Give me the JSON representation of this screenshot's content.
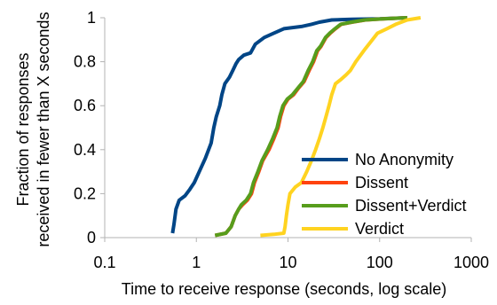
{
  "chart_data": {
    "type": "line",
    "title": "",
    "xlabel": "Time to receive response (seconds, log scale)",
    "ylabel_lines": [
      "Fraction of responses",
      "received in fewer than X seconds"
    ],
    "x_scale": "log",
    "xlim": [
      0.1,
      1000
    ],
    "ylim": [
      0,
      1
    ],
    "x_ticks": [
      0.1,
      1,
      10,
      100,
      1000
    ],
    "x_tick_labels": [
      "0.1",
      "1",
      "10",
      "100",
      "1000"
    ],
    "y_ticks": [
      0,
      0.2,
      0.4,
      0.6,
      0.8,
      1
    ],
    "y_tick_labels": [
      "0",
      "0.2",
      "0.4",
      "0.6",
      "0.8",
      "1"
    ],
    "grid": false,
    "legend_position": "right",
    "series": [
      {
        "name": "No Anonymity",
        "color": "#004586",
        "points": [
          [
            0.55,
            0.02
          ],
          [
            0.57,
            0.06
          ],
          [
            0.6,
            0.13
          ],
          [
            0.65,
            0.17
          ],
          [
            0.75,
            0.19
          ],
          [
            0.85,
            0.22
          ],
          [
            0.95,
            0.25
          ],
          [
            1.05,
            0.29
          ],
          [
            1.25,
            0.36
          ],
          [
            1.45,
            0.43
          ],
          [
            1.55,
            0.5
          ],
          [
            1.65,
            0.55
          ],
          [
            1.8,
            0.6
          ],
          [
            1.9,
            0.65
          ],
          [
            2.05,
            0.7
          ],
          [
            2.3,
            0.73
          ],
          [
            2.5,
            0.76
          ],
          [
            2.7,
            0.79
          ],
          [
            2.9,
            0.81
          ],
          [
            3.3,
            0.83
          ],
          [
            3.9,
            0.84
          ],
          [
            4.4,
            0.88
          ],
          [
            5.5,
            0.91
          ],
          [
            7.0,
            0.93
          ],
          [
            9.0,
            0.95
          ],
          [
            14,
            0.96
          ],
          [
            18,
            0.97
          ],
          [
            22,
            0.98
          ],
          [
            30,
            0.99
          ],
          [
            50,
            0.993
          ],
          [
            100,
            0.995
          ],
          [
            150,
            0.998
          ],
          [
            200,
            1.0
          ]
        ]
      },
      {
        "name": "Dissent",
        "color": "#ff420e",
        "points": [
          [
            1.6,
            0.01
          ],
          [
            2.1,
            0.02
          ],
          [
            2.4,
            0.05
          ],
          [
            2.65,
            0.1
          ],
          [
            2.9,
            0.13
          ],
          [
            3.2,
            0.15
          ],
          [
            3.6,
            0.17
          ],
          [
            4.0,
            0.2
          ],
          [
            4.3,
            0.25
          ],
          [
            4.8,
            0.3
          ],
          [
            5.3,
            0.35
          ],
          [
            6.2,
            0.4
          ],
          [
            7.0,
            0.45
          ],
          [
            7.8,
            0.5
          ],
          [
            8.3,
            0.55
          ],
          [
            9.0,
            0.6
          ],
          [
            10.0,
            0.63
          ],
          [
            11.5,
            0.65
          ],
          [
            13.0,
            0.68
          ],
          [
            15.0,
            0.71
          ],
          [
            17.0,
            0.76
          ],
          [
            19.0,
            0.8
          ],
          [
            21.0,
            0.85
          ],
          [
            23.0,
            0.87
          ],
          [
            26.0,
            0.91
          ],
          [
            29.0,
            0.93
          ],
          [
            33.0,
            0.95
          ],
          [
            38.0,
            0.97
          ],
          [
            50.0,
            0.98
          ],
          [
            70.0,
            0.99
          ],
          [
            110.0,
            0.995
          ],
          [
            200.0,
            1.0
          ]
        ]
      },
      {
        "name": "Dissent+Verdict",
        "color": "#579d1c",
        "points": [
          [
            1.6,
            0.01
          ],
          [
            2.1,
            0.02
          ],
          [
            2.4,
            0.05
          ],
          [
            2.65,
            0.1
          ],
          [
            2.9,
            0.13
          ],
          [
            3.1,
            0.15
          ],
          [
            3.5,
            0.17
          ],
          [
            3.9,
            0.2
          ],
          [
            4.2,
            0.25
          ],
          [
            4.7,
            0.3
          ],
          [
            5.2,
            0.35
          ],
          [
            6.0,
            0.4
          ],
          [
            6.8,
            0.45
          ],
          [
            7.6,
            0.5
          ],
          [
            8.1,
            0.55
          ],
          [
            8.8,
            0.6
          ],
          [
            9.8,
            0.63
          ],
          [
            11.2,
            0.65
          ],
          [
            12.8,
            0.68
          ],
          [
            14.7,
            0.71
          ],
          [
            16.6,
            0.76
          ],
          [
            18.6,
            0.8
          ],
          [
            20.6,
            0.85
          ],
          [
            22.6,
            0.87
          ],
          [
            25.6,
            0.91
          ],
          [
            28.5,
            0.93
          ],
          [
            32.5,
            0.95
          ],
          [
            37.5,
            0.97
          ],
          [
            49.0,
            0.98
          ],
          [
            69.0,
            0.99
          ],
          [
            108.0,
            0.995
          ],
          [
            200.0,
            1.0
          ]
        ]
      },
      {
        "name": "Verdict",
        "color": "#ffd320",
        "points": [
          [
            5.0,
            0.01
          ],
          [
            7.0,
            0.015
          ],
          [
            9.0,
            0.02
          ],
          [
            9.3,
            0.05
          ],
          [
            9.6,
            0.1
          ],
          [
            10.0,
            0.15
          ],
          [
            10.5,
            0.2
          ],
          [
            12.0,
            0.23
          ],
          [
            14.0,
            0.25
          ],
          [
            16.0,
            0.3
          ],
          [
            18.0,
            0.35
          ],
          [
            20.0,
            0.4
          ],
          [
            22.0,
            0.45
          ],
          [
            24.0,
            0.5
          ],
          [
            26.0,
            0.55
          ],
          [
            28.0,
            0.6
          ],
          [
            30.0,
            0.65
          ],
          [
            33.0,
            0.7
          ],
          [
            38.0,
            0.72
          ],
          [
            43.0,
            0.74
          ],
          [
            48.0,
            0.76
          ],
          [
            55.0,
            0.8
          ],
          [
            62.0,
            0.83
          ],
          [
            70.0,
            0.86
          ],
          [
            80.0,
            0.89
          ],
          [
            95.0,
            0.93
          ],
          [
            120.0,
            0.95
          ],
          [
            150.0,
            0.97
          ],
          [
            200.0,
            0.99
          ],
          [
            280.0,
            1.0
          ]
        ]
      }
    ]
  }
}
